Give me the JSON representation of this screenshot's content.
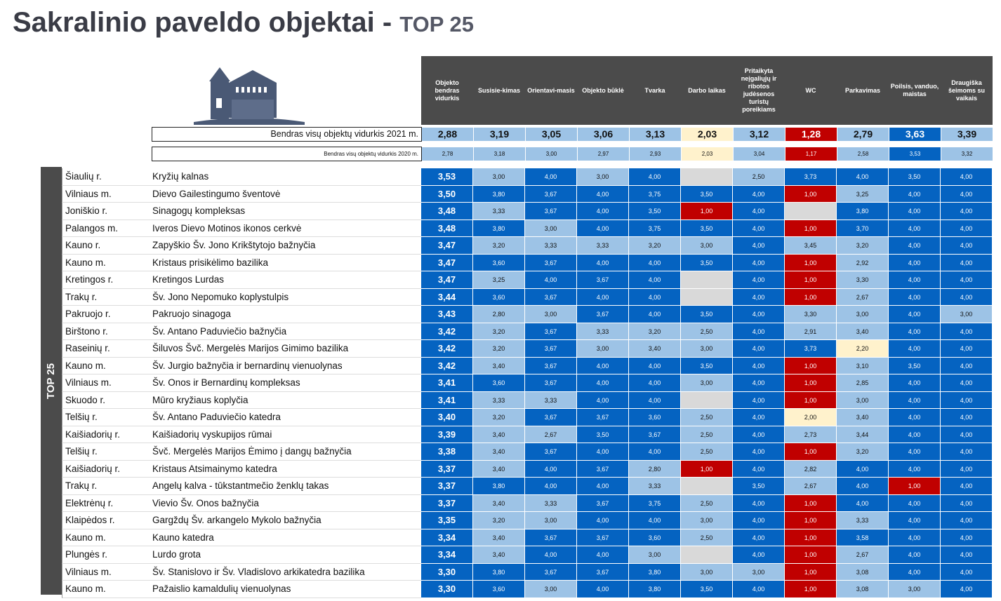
{
  "title": {
    "main": "Sakralinio paveldo objektai - ",
    "sub": "TOP 25"
  },
  "sidebar_label": "TOP 25",
  "columns": [
    "Objekto bendras vidurkis",
    "Susisie-kimas",
    "Orientavi-masis",
    "Objekto būklė",
    "Tvarka",
    "Darbo laikas",
    "Pritaikyta neįgaliųjų ir ribotos judėsenos turistų poreikiams",
    "WC",
    "Parkavimas",
    "Poilsis, vanduo, maistas",
    "Draugiška šeimoms su vaikais"
  ],
  "avg2021": {
    "label": "Bendras visų objektų vidurkis 2021 m.",
    "values": [
      "2,88",
      "3,19",
      "3,05",
      "3,06",
      "3,13",
      "2,03",
      "3,12",
      "1,28",
      "2,79",
      "3,63",
      "3,39"
    ]
  },
  "avg2020": {
    "label": "Bendras visų objektų vidurkis 2020 m.",
    "values": [
      "2,78",
      "3,18",
      "3,00",
      "2,97",
      "2,93",
      "2,03",
      "3,04",
      "1,17",
      "2,58",
      "3,53",
      "3,32"
    ]
  },
  "rows": [
    {
      "region": "Šiaulių r.",
      "name": "Kryžių kalnas",
      "values": [
        "3,53",
        "3,00",
        "4,00",
        "3,00",
        "4,00",
        "",
        "2,50",
        "3,73",
        "4,00",
        "3,50",
        "4,00"
      ]
    },
    {
      "region": "Vilniaus m.",
      "name": "Dievo Gailestingumo šventovė",
      "values": [
        "3,50",
        "3,80",
        "3,67",
        "4,00",
        "3,75",
        "3,50",
        "4,00",
        "1,00",
        "3,25",
        "4,00",
        "4,00"
      ]
    },
    {
      "region": "Joniškio r.",
      "name": "Sinagogų kompleksas",
      "values": [
        "3,48",
        "3,33",
        "3,67",
        "4,00",
        "3,50",
        "1,00",
        "4,00",
        "",
        "3,80",
        "4,00",
        "4,00"
      ]
    },
    {
      "region": "Palangos m.",
      "name": "Iveros Dievo Motinos ikonos cerkvė",
      "values": [
        "3,48",
        "3,80",
        "3,00",
        "4,00",
        "3,75",
        "3,50",
        "4,00",
        "1,00",
        "3,70",
        "4,00",
        "4,00"
      ]
    },
    {
      "region": "Kauno r.",
      "name": "Zapyškio Šv. Jono Krikštytojo bažnyčia",
      "values": [
        "3,47",
        "3,20",
        "3,33",
        "3,33",
        "3,20",
        "3,00",
        "4,00",
        "3,45",
        "3,20",
        "4,00",
        "4,00"
      ]
    },
    {
      "region": "Kauno m.",
      "name": "Kristaus prisikėlimo bazilika",
      "values": [
        "3,47",
        "3,60",
        "3,67",
        "4,00",
        "4,00",
        "3,50",
        "4,00",
        "1,00",
        "2,92",
        "4,00",
        "4,00"
      ]
    },
    {
      "region": "Kretingos r.",
      "name": "Kretingos Lurdas",
      "values": [
        "3,47",
        "3,25",
        "4,00",
        "3,67",
        "4,00",
        "",
        "4,00",
        "1,00",
        "3,30",
        "4,00",
        "4,00"
      ]
    },
    {
      "region": "Trakų r.",
      "name": "Šv. Jono Nepomuko koplystulpis",
      "values": [
        "3,44",
        "3,60",
        "3,67",
        "4,00",
        "4,00",
        "",
        "4,00",
        "1,00",
        "2,67",
        "4,00",
        "4,00"
      ]
    },
    {
      "region": "Pakruojo r.",
      "name": "Pakruojo sinagoga",
      "values": [
        "3,43",
        "2,80",
        "3,00",
        "3,67",
        "4,00",
        "3,50",
        "4,00",
        "3,30",
        "3,00",
        "4,00",
        "3,00"
      ]
    },
    {
      "region": "Birštono r.",
      "name": "Šv. Antano Paduviečio bažnyčia",
      "values": [
        "3,42",
        "3,20",
        "3,67",
        "3,33",
        "3,20",
        "2,50",
        "4,00",
        "2,91",
        "3,40",
        "4,00",
        "4,00"
      ]
    },
    {
      "region": "Raseinių r.",
      "name": "Šiluvos Švč. Mergelės Marijos Gimimo bazilika",
      "values": [
        "3,42",
        "3,20",
        "3,67",
        "3,00",
        "3,40",
        "3,00",
        "4,00",
        "3,73",
        "2,20",
        "4,00",
        "4,00"
      ]
    },
    {
      "region": "Kauno m.",
      "name": "Šv. Jurgio bažnyčia ir bernardinų vienuolynas",
      "values": [
        "3,42",
        "3,40",
        "3,67",
        "4,00",
        "4,00",
        "3,50",
        "4,00",
        "1,00",
        "3,10",
        "3,50",
        "4,00"
      ]
    },
    {
      "region": "Vilniaus m.",
      "name": "Šv. Onos ir Bernardinų kompleksas",
      "values": [
        "3,41",
        "3,60",
        "3,67",
        "4,00",
        "4,00",
        "3,00",
        "4,00",
        "1,00",
        "2,85",
        "4,00",
        "4,00"
      ]
    },
    {
      "region": "Skuodo r.",
      "name": "Mūro kryžiaus koplyčia",
      "values": [
        "3,41",
        "3,33",
        "3,33",
        "4,00",
        "4,00",
        "",
        "4,00",
        "1,00",
        "3,00",
        "4,00",
        "4,00"
      ]
    },
    {
      "region": "Telšių r.",
      "name": "Šv. Antano Paduviečio katedra",
      "values": [
        "3,40",
        "3,20",
        "3,67",
        "3,67",
        "3,60",
        "2,50",
        "4,00",
        "2,00",
        "3,40",
        "4,00",
        "4,00"
      ]
    },
    {
      "region": "Kaišiadorių r.",
      "name": "Kaišiadorių vyskupijos rūmai",
      "values": [
        "3,39",
        "3,40",
        "2,67",
        "3,50",
        "3,67",
        "2,50",
        "4,00",
        "2,73",
        "3,44",
        "4,00",
        "4,00"
      ]
    },
    {
      "region": "Telšių r.",
      "name": "Švč. Mergelės Marijos Ėmimo į dangų bažnyčia",
      "values": [
        "3,38",
        "3,40",
        "3,67",
        "4,00",
        "4,00",
        "2,50",
        "4,00",
        "1,00",
        "3,20",
        "4,00",
        "4,00"
      ]
    },
    {
      "region": "Kaišiadorių r.",
      "name": "Kristaus Atsimainymo katedra",
      "values": [
        "3,37",
        "3,40",
        "4,00",
        "3,67",
        "2,80",
        "1,00",
        "4,00",
        "2,82",
        "4,00",
        "4,00",
        "4,00"
      ]
    },
    {
      "region": "Trakų r.",
      "name": "Angelų kalva - tūkstantmečio ženklų takas",
      "values": [
        "3,37",
        "3,80",
        "4,00",
        "4,00",
        "3,33",
        "",
        "3,50",
        "2,67",
        "4,00",
        "1,00",
        "4,00"
      ]
    },
    {
      "region": "Elektrėnų r.",
      "name": "Vievio Šv. Onos bažnyčia",
      "values": [
        "3,37",
        "3,40",
        "3,33",
        "3,67",
        "3,75",
        "2,50",
        "4,00",
        "1,00",
        "4,00",
        "4,00",
        "4,00"
      ]
    },
    {
      "region": "Klaipėdos r.",
      "name": "Gargždų Šv. arkangelo Mykolo bažnyčia",
      "values": [
        "3,35",
        "3,20",
        "3,00",
        "4,00",
        "4,00",
        "3,00",
        "4,00",
        "1,00",
        "3,33",
        "4,00",
        "4,00"
      ]
    },
    {
      "region": "Kauno m.",
      "name": "Kauno katedra",
      "values": [
        "3,34",
        "3,40",
        "3,67",
        "3,67",
        "3,60",
        "2,50",
        "4,00",
        "1,00",
        "3,58",
        "4,00",
        "4,00"
      ]
    },
    {
      "region": "Plungės r.",
      "name": "Lurdo grota",
      "values": [
        "3,34",
        "3,40",
        "4,00",
        "4,00",
        "3,00",
        "",
        "4,00",
        "1,00",
        "2,67",
        "4,00",
        "4,00"
      ]
    },
    {
      "region": "Vilniaus m.",
      "name": "Šv. Stanislovo ir Šv. Vladislovo arkikatedra bazilika",
      "values": [
        "3,30",
        "3,80",
        "3,67",
        "3,67",
        "3,80",
        "3,00",
        "3,00",
        "1,00",
        "3,08",
        "4,00",
        "4,00"
      ]
    },
    {
      "region": "Kauno m.",
      "name": "Pažaislio kamaldulių vienuolynas",
      "values": [
        "3,30",
        "3,60",
        "3,00",
        "4,00",
        "3,80",
        "3,50",
        "4,00",
        "1,00",
        "3,08",
        "3,00",
        "4,00"
      ]
    }
  ]
}
